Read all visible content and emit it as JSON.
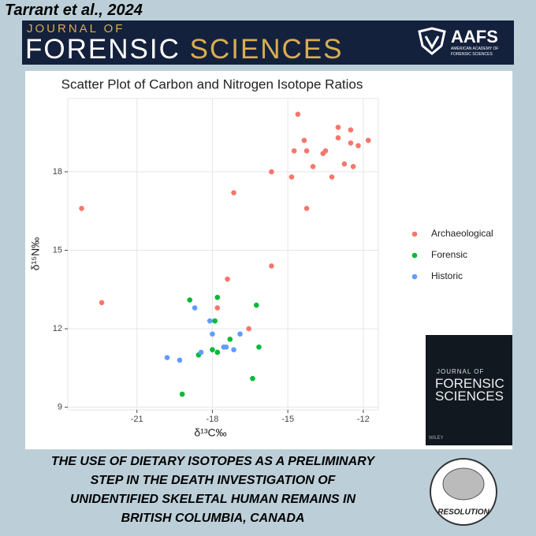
{
  "citation": "Tarrant et al., 2024",
  "journal": {
    "line1": "JOURNAL OF",
    "word1": "FORENSIC",
    "word2": "SCIENCES"
  },
  "society": {
    "abbr": "AAFS",
    "line1": "AMERICAN ACADEMY OF",
    "line2": "FORENSIC SCIENCES"
  },
  "cover": {
    "line1": "JOURNAL OF",
    "line2": "FORENSIC",
    "line3": "SCIENCES",
    "publisher": "WILEY"
  },
  "logo": "RESOLUTION",
  "headline": [
    "THE USE OF DIETARY ISOTOPES AS A PRELIMINARY",
    "STEP IN THE DEATH INVESTIGATION OF",
    "UNIDENTIFIED SKELETAL HUMAN REMAINS IN",
    "BRITISH COLUMBIA, CANADA"
  ],
  "chart_data": {
    "type": "scatter",
    "title": "Scatter Plot of Carbon and Nitrogen Isotope Ratios",
    "x_label": "δ¹³C‰",
    "y_label": "δ¹⁵N‰",
    "xlim": [
      -23.75,
      -11.4
    ],
    "ylim": [
      8.9,
      20.8
    ],
    "xticks": [
      -21,
      -18,
      -15,
      -12
    ],
    "yticks": [
      9,
      12,
      15,
      18
    ],
    "grid": true,
    "legend": "right",
    "series": [
      {
        "name": "Archaeological",
        "color": "#f8766d",
        "x": [
          -23.2,
          -22.4,
          -14.6,
          -14.75,
          -14.35,
          -14.25,
          -14.0,
          -13.6,
          -13.5,
          -13.0,
          -13.0,
          -12.5,
          -12.5,
          -12.2,
          -11.8,
          -12.75,
          -12.4,
          -13.25,
          -14.85,
          -14.25,
          -15.65,
          -17.15,
          -17.4,
          -15.65,
          -17.8,
          -16.55
        ],
        "values": [
          16.6,
          13.0,
          20.2,
          18.8,
          19.2,
          18.8,
          18.2,
          18.7,
          18.8,
          19.7,
          19.3,
          19.6,
          19.1,
          19.0,
          19.2,
          18.3,
          18.2,
          17.8,
          17.8,
          16.6,
          18.0,
          17.2,
          13.9,
          14.4,
          12.8,
          12.0
        ]
      },
      {
        "name": "Forensic",
        "color": "#00ba38",
        "x": [
          -18.9,
          -17.8,
          -17.9,
          -16.25,
          -17.3,
          -18.0,
          -17.8,
          -18.55,
          -16.15,
          -16.4,
          -19.2
        ],
        "values": [
          13.1,
          13.2,
          12.3,
          12.9,
          11.6,
          11.2,
          11.1,
          11.0,
          11.3,
          10.1,
          9.5
        ]
      },
      {
        "name": "Historic",
        "color": "#619cff",
        "x": [
          -18.7,
          -18.1,
          -18.0,
          -16.9,
          -17.55,
          -17.45,
          -17.15,
          -18.45,
          -19.8,
          -19.3
        ],
        "values": [
          12.8,
          12.3,
          11.8,
          11.8,
          11.3,
          11.3,
          11.2,
          11.1,
          10.9,
          10.8
        ]
      }
    ]
  }
}
